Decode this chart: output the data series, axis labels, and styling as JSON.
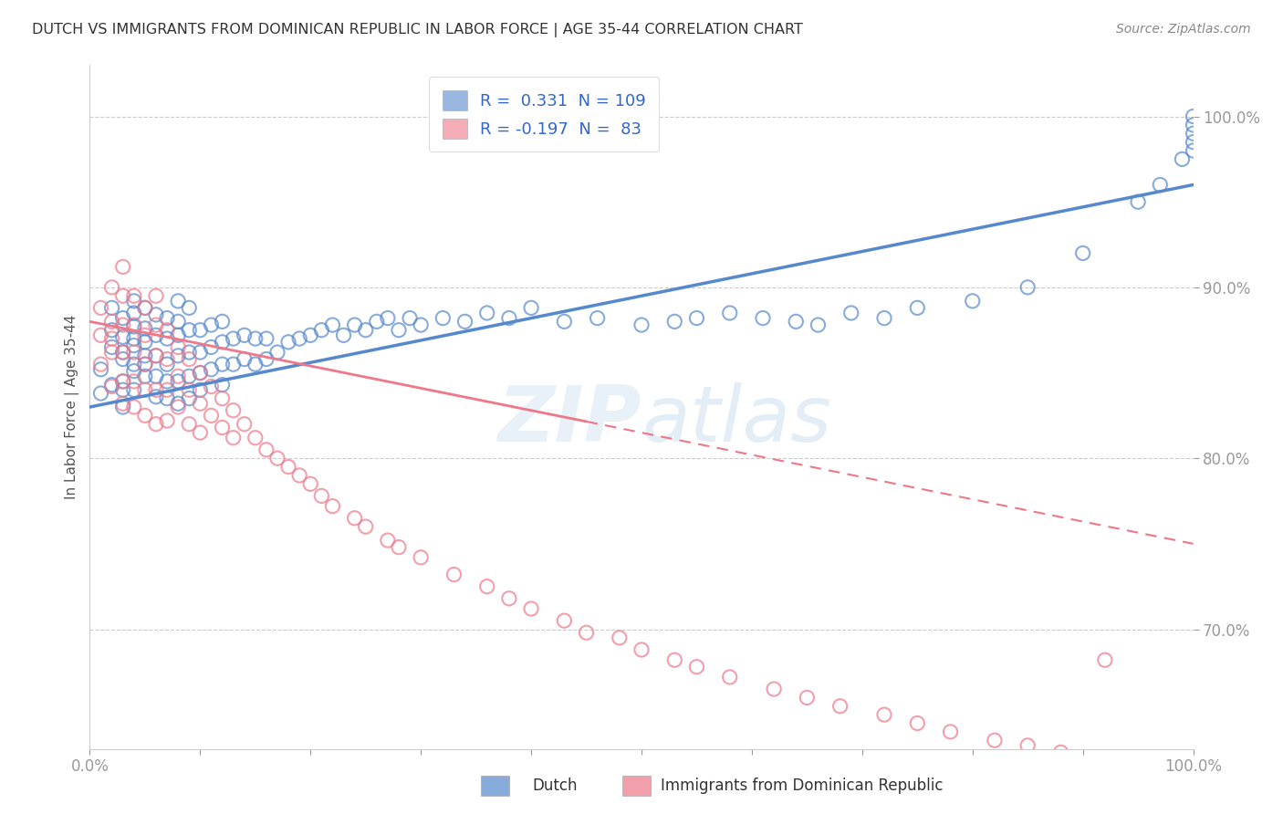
{
  "title": "DUTCH VS IMMIGRANTS FROM DOMINICAN REPUBLIC IN LABOR FORCE | AGE 35-44 CORRELATION CHART",
  "source": "Source: ZipAtlas.com",
  "ylabel": "In Labor Force | Age 35-44",
  "xlim": [
    0.0,
    1.0
  ],
  "ylim": [
    0.63,
    1.03
  ],
  "dutch_color": "#5588cc",
  "immigrant_color": "#ee7788",
  "dutch_R": 0.331,
  "dutch_N": 109,
  "immigrant_R": -0.197,
  "immigrant_N": 83,
  "legend_label_dutch": "Dutch",
  "legend_label_immigrant": "Immigrants from Dominican Republic",
  "dutch_scatter_x": [
    0.01,
    0.01,
    0.02,
    0.02,
    0.02,
    0.02,
    0.03,
    0.03,
    0.03,
    0.03,
    0.03,
    0.03,
    0.03,
    0.04,
    0.04,
    0.04,
    0.04,
    0.04,
    0.04,
    0.04,
    0.04,
    0.05,
    0.05,
    0.05,
    0.05,
    0.05,
    0.05,
    0.06,
    0.06,
    0.06,
    0.06,
    0.06,
    0.07,
    0.07,
    0.07,
    0.07,
    0.07,
    0.08,
    0.08,
    0.08,
    0.08,
    0.08,
    0.08,
    0.09,
    0.09,
    0.09,
    0.09,
    0.09,
    0.1,
    0.1,
    0.1,
    0.1,
    0.11,
    0.11,
    0.11,
    0.12,
    0.12,
    0.12,
    0.12,
    0.13,
    0.13,
    0.14,
    0.14,
    0.15,
    0.15,
    0.16,
    0.16,
    0.17,
    0.18,
    0.19,
    0.2,
    0.21,
    0.22,
    0.23,
    0.24,
    0.25,
    0.26,
    0.27,
    0.28,
    0.29,
    0.3,
    0.32,
    0.34,
    0.36,
    0.38,
    0.4,
    0.43,
    0.46,
    0.5,
    0.53,
    0.55,
    0.58,
    0.61,
    0.64,
    0.66,
    0.69,
    0.72,
    0.75,
    0.8,
    0.85,
    0.9,
    0.95,
    0.97,
    0.99,
    1.0,
    1.0,
    1.0,
    1.0,
    1.0
  ],
  "dutch_scatter_y": [
    0.838,
    0.852,
    0.865,
    0.843,
    0.875,
    0.888,
    0.83,
    0.845,
    0.862,
    0.871,
    0.882,
    0.858,
    0.84,
    0.851,
    0.866,
    0.877,
    0.892,
    0.84,
    0.855,
    0.87,
    0.885,
    0.855,
    0.868,
    0.876,
    0.888,
    0.848,
    0.86,
    0.86,
    0.872,
    0.884,
    0.848,
    0.836,
    0.855,
    0.87,
    0.882,
    0.845,
    0.835,
    0.86,
    0.872,
    0.88,
    0.892,
    0.845,
    0.832,
    0.862,
    0.875,
    0.888,
    0.848,
    0.835,
    0.862,
    0.875,
    0.85,
    0.84,
    0.865,
    0.878,
    0.852,
    0.868,
    0.88,
    0.855,
    0.843,
    0.87,
    0.855,
    0.872,
    0.858,
    0.87,
    0.855,
    0.87,
    0.858,
    0.862,
    0.868,
    0.87,
    0.872,
    0.875,
    0.878,
    0.872,
    0.878,
    0.875,
    0.88,
    0.882,
    0.875,
    0.882,
    0.878,
    0.882,
    0.88,
    0.885,
    0.882,
    0.888,
    0.88,
    0.882,
    0.878,
    0.88,
    0.882,
    0.885,
    0.882,
    0.88,
    0.878,
    0.885,
    0.882,
    0.888,
    0.892,
    0.9,
    0.92,
    0.95,
    0.96,
    0.975,
    0.98,
    0.985,
    0.99,
    0.995,
    1.0
  ],
  "immigrant_scatter_x": [
    0.01,
    0.01,
    0.01,
    0.02,
    0.02,
    0.02,
    0.02,
    0.02,
    0.03,
    0.03,
    0.03,
    0.03,
    0.03,
    0.03,
    0.04,
    0.04,
    0.04,
    0.04,
    0.04,
    0.05,
    0.05,
    0.05,
    0.05,
    0.05,
    0.06,
    0.06,
    0.06,
    0.06,
    0.06,
    0.07,
    0.07,
    0.07,
    0.07,
    0.08,
    0.08,
    0.08,
    0.09,
    0.09,
    0.09,
    0.1,
    0.1,
    0.1,
    0.11,
    0.11,
    0.12,
    0.12,
    0.13,
    0.13,
    0.14,
    0.15,
    0.16,
    0.17,
    0.18,
    0.19,
    0.2,
    0.21,
    0.22,
    0.24,
    0.25,
    0.27,
    0.28,
    0.3,
    0.33,
    0.36,
    0.38,
    0.4,
    0.43,
    0.45,
    0.48,
    0.5,
    0.53,
    0.55,
    0.58,
    0.62,
    0.65,
    0.68,
    0.72,
    0.75,
    0.78,
    0.82,
    0.85,
    0.88,
    0.92
  ],
  "immigrant_scatter_y": [
    0.872,
    0.888,
    0.855,
    0.9,
    0.88,
    0.862,
    0.842,
    0.87,
    0.912,
    0.895,
    0.878,
    0.862,
    0.845,
    0.832,
    0.895,
    0.878,
    0.862,
    0.845,
    0.83,
    0.888,
    0.872,
    0.855,
    0.84,
    0.825,
    0.895,
    0.878,
    0.86,
    0.84,
    0.82,
    0.875,
    0.858,
    0.84,
    0.822,
    0.865,
    0.848,
    0.83,
    0.858,
    0.84,
    0.82,
    0.85,
    0.832,
    0.815,
    0.842,
    0.825,
    0.835,
    0.818,
    0.828,
    0.812,
    0.82,
    0.812,
    0.805,
    0.8,
    0.795,
    0.79,
    0.785,
    0.778,
    0.772,
    0.765,
    0.76,
    0.752,
    0.748,
    0.742,
    0.732,
    0.725,
    0.718,
    0.712,
    0.705,
    0.698,
    0.695,
    0.688,
    0.682,
    0.678,
    0.672,
    0.665,
    0.66,
    0.655,
    0.65,
    0.645,
    0.64,
    0.635,
    0.632,
    0.628,
    0.682
  ]
}
